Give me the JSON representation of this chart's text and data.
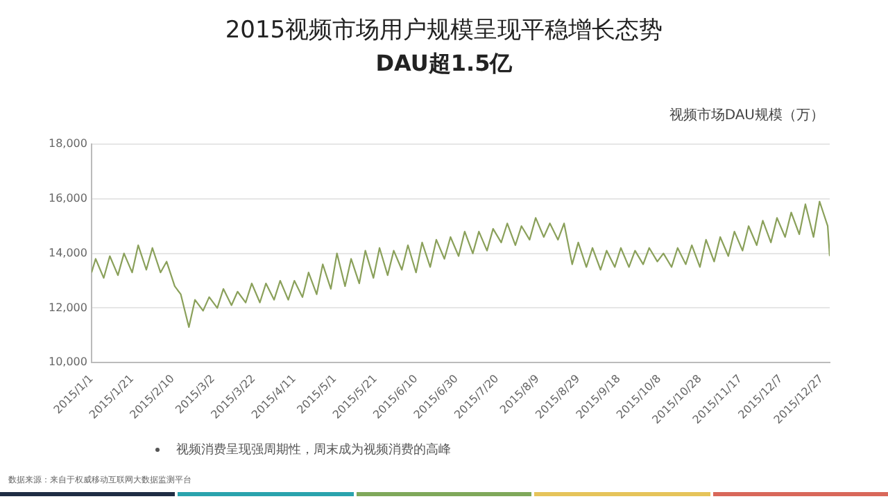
{
  "chart_data": {
    "type": "line",
    "title": "2015视频市场用户规模呈现平稳增长态势",
    "subtitle": "DAU超1.5亿",
    "ylabel": "视频市场DAU规模（万）",
    "annotations": [
      "视频消费呈现强周期性，周末成为视频消费的高峰",
      "数据来源：来自于权威移动互联网大数据监测平台"
    ],
    "x": [
      "2015-01-01",
      "2015-01-03",
      "2015-01-07",
      "2015-01-10",
      "2015-01-14",
      "2015-01-17",
      "2015-01-21",
      "2015-01-24",
      "2015-01-28",
      "2015-01-31",
      "2015-02-04",
      "2015-02-07",
      "2015-02-11",
      "2015-02-14",
      "2015-02-18",
      "2015-02-21",
      "2015-02-25",
      "2015-02-28",
      "2015-03-04",
      "2015-03-07",
      "2015-03-11",
      "2015-03-14",
      "2015-03-18",
      "2015-03-21",
      "2015-03-25",
      "2015-03-28",
      "2015-04-01",
      "2015-04-04",
      "2015-04-08",
      "2015-04-11",
      "2015-04-15",
      "2015-04-18",
      "2015-04-22",
      "2015-04-25",
      "2015-04-29",
      "2015-05-02",
      "2015-05-06",
      "2015-05-09",
      "2015-05-13",
      "2015-05-16",
      "2015-05-20",
      "2015-05-23",
      "2015-05-27",
      "2015-05-30",
      "2015-06-03",
      "2015-06-06",
      "2015-06-10",
      "2015-06-13",
      "2015-06-17",
      "2015-06-20",
      "2015-06-24",
      "2015-06-27",
      "2015-07-01",
      "2015-07-04",
      "2015-07-08",
      "2015-07-11",
      "2015-07-15",
      "2015-07-18",
      "2015-07-22",
      "2015-07-25",
      "2015-07-29",
      "2015-08-01",
      "2015-08-05",
      "2015-08-08",
      "2015-08-12",
      "2015-08-15",
      "2015-08-19",
      "2015-08-22",
      "2015-08-26",
      "2015-08-29",
      "2015-09-02",
      "2015-09-05",
      "2015-09-09",
      "2015-09-12",
      "2015-09-16",
      "2015-09-19",
      "2015-09-23",
      "2015-09-26",
      "2015-09-30",
      "2015-10-03",
      "2015-10-07",
      "2015-10-10",
      "2015-10-14",
      "2015-10-17",
      "2015-10-21",
      "2015-10-24",
      "2015-10-28",
      "2015-10-31",
      "2015-11-04",
      "2015-11-07",
      "2015-11-11",
      "2015-11-14",
      "2015-11-18",
      "2015-11-21",
      "2015-11-25",
      "2015-11-28",
      "2015-12-02",
      "2015-12-05",
      "2015-12-09",
      "2015-12-12",
      "2015-12-16",
      "2015-12-19",
      "2015-12-23",
      "2015-12-26",
      "2015-12-30",
      "2015-12-31"
    ],
    "series": [
      {
        "color": "#8aa05a",
        "values": [
          13300,
          13800,
          13100,
          13900,
          13200,
          14000,
          13300,
          14300,
          13400,
          14200,
          13300,
          13700,
          12800,
          12500,
          11300,
          12300,
          11900,
          12400,
          12000,
          12700,
          12100,
          12600,
          12200,
          12900,
          12200,
          12900,
          12300,
          13000,
          12300,
          13000,
          12400,
          13300,
          12500,
          13600,
          12700,
          14000,
          12800,
          13800,
          12900,
          14100,
          13100,
          14200,
          13200,
          14100,
          13400,
          14300,
          13300,
          14400,
          13500,
          14500,
          13800,
          14600,
          13900,
          14800,
          14000,
          14800,
          14100,
          14900,
          14400,
          15100,
          14300,
          15000,
          14500,
          15300,
          14600,
          15100,
          14500,
          15100,
          13600,
          14400,
          13500,
          14200,
          13400,
          14100,
          13500,
          14200,
          13500,
          14100,
          13600,
          14200,
          13700,
          14000,
          13500,
          14200,
          13600,
          14300,
          13500,
          14500,
          13700,
          14600,
          13900,
          14800,
          14100,
          15000,
          14300,
          15200,
          14400,
          15300,
          14600,
          15500,
          14700,
          15800,
          14600,
          15900,
          15000,
          13900
        ]
      }
    ],
    "xlim": [
      "2015-01-01",
      "2015-12-31"
    ],
    "xticks": [
      {
        "value": "2015-01-01",
        "label": "2015/1/1"
      },
      {
        "value": "2015-01-21",
        "label": "2015/1/21"
      },
      {
        "value": "2015-02-10",
        "label": "2015/2/10"
      },
      {
        "value": "2015-03-02",
        "label": "2015/3/2"
      },
      {
        "value": "2015-03-22",
        "label": "2015/3/22"
      },
      {
        "value": "2015-04-11",
        "label": "2015/4/11"
      },
      {
        "value": "2015-05-01",
        "label": "2015/5/1"
      },
      {
        "value": "2015-05-21",
        "label": "2015/5/21"
      },
      {
        "value": "2015-06-10",
        "label": "2015/6/10"
      },
      {
        "value": "2015-06-30",
        "label": "2015/6/30"
      },
      {
        "value": "2015-07-20",
        "label": "2015/7/20"
      },
      {
        "value": "2015-08-09",
        "label": "2015/8/9"
      },
      {
        "value": "2015-08-29",
        "label": "2015/8/29"
      },
      {
        "value": "2015-09-18",
        "label": "2015/9/18"
      },
      {
        "value": "2015-10-08",
        "label": "2015/10/8"
      },
      {
        "value": "2015-10-28",
        "label": "2015/10/28"
      },
      {
        "value": "2015-11-17",
        "label": "2015/11/17"
      },
      {
        "value": "2015-12-07",
        "label": "2015/12/7"
      },
      {
        "value": "2015-12-27",
        "label": "2015/12/27"
      }
    ],
    "ylim": [
      10000,
      18000
    ],
    "yticks": [
      {
        "value": 10000,
        "label": "10,000"
      },
      {
        "value": 12000,
        "label": "12,000"
      },
      {
        "value": 14000,
        "label": "14,000"
      },
      {
        "value": 16000,
        "label": "16,000"
      },
      {
        "value": 18000,
        "label": "18,000"
      }
    ],
    "grid": "y",
    "legend": false,
    "marker": "none",
    "line_style": "solid"
  }
}
